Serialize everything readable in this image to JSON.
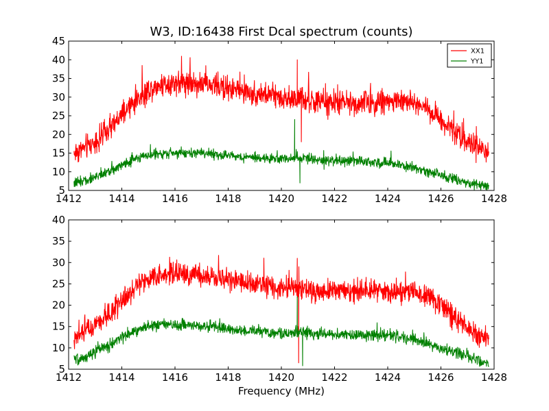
{
  "figure": {
    "title": "W3, ID:16438 First Dcal spectrum (counts)",
    "xlabel": "Frequency (MHz)"
  },
  "chart_data": [
    {
      "type": "line",
      "title": "W3, ID:16438 First Dcal spectrum (counts)",
      "xlabel": "",
      "ylabel": "",
      "xlim": [
        1412,
        1428
      ],
      "ylim": [
        5,
        45
      ],
      "xticks": [
        1412,
        1414,
        1416,
        1418,
        1420,
        1422,
        1424,
        1426,
        1428
      ],
      "yticks": [
        5,
        10,
        15,
        20,
        25,
        30,
        35,
        40,
        45
      ],
      "grid": false,
      "legend": "top-right",
      "x": [
        1412.2,
        1412.5,
        1413.0,
        1413.5,
        1414.0,
        1414.5,
        1415.0,
        1415.5,
        1416.0,
        1416.5,
        1417.0,
        1417.5,
        1418.0,
        1418.5,
        1419.0,
        1419.5,
        1420.0,
        1420.5,
        1421.0,
        1421.5,
        1422.0,
        1422.5,
        1423.0,
        1423.5,
        1424.0,
        1424.5,
        1425.0,
        1425.5,
        1426.0,
        1426.5,
        1427.0,
        1427.5,
        1427.8
      ],
      "series": [
        {
          "name": "XX1",
          "color": "#ff0000",
          "values": [
            15,
            16,
            18,
            21,
            25,
            29,
            32,
            33.5,
            34,
            34,
            33.5,
            33,
            32.5,
            31.5,
            31,
            30.5,
            30,
            29.5,
            29,
            28.5,
            28.5,
            28.5,
            28.5,
            28.5,
            29,
            29,
            28.5,
            27,
            24,
            21,
            18,
            16,
            15
          ],
          "noise": 3.2,
          "spikes": [
            {
              "x": 1420.6,
              "value": 40
            },
            {
              "x": 1420.75,
              "value": 18
            }
          ]
        },
        {
          "name": "YY1",
          "color": "#008000",
          "values": [
            7,
            7.5,
            8.5,
            10,
            12,
            13.5,
            14.5,
            15,
            15,
            15,
            15,
            14.5,
            14.5,
            14,
            14,
            13.5,
            13.5,
            13.5,
            13.5,
            13,
            13,
            13,
            13,
            12.5,
            12.5,
            12,
            11,
            10,
            9,
            8,
            7,
            6.5,
            6.5
          ],
          "noise": 1.3,
          "spikes": [
            {
              "x": 1420.5,
              "value": 24
            },
            {
              "x": 1420.7,
              "value": 7
            }
          ]
        }
      ]
    },
    {
      "type": "line",
      "title": "",
      "xlabel": "Frequency (MHz)",
      "ylabel": "",
      "xlim": [
        1412,
        1428
      ],
      "ylim": [
        5,
        40
      ],
      "xticks": [
        1412,
        1414,
        1416,
        1418,
        1420,
        1422,
        1424,
        1426,
        1428
      ],
      "yticks": [
        5,
        10,
        15,
        20,
        25,
        30,
        35,
        40
      ],
      "grid": false,
      "legend": "none",
      "x": [
        1412.2,
        1412.5,
        1413.0,
        1413.5,
        1414.0,
        1414.5,
        1415.0,
        1415.5,
        1416.0,
        1416.5,
        1417.0,
        1417.5,
        1418.0,
        1418.5,
        1419.0,
        1419.5,
        1420.0,
        1420.5,
        1421.0,
        1421.5,
        1422.0,
        1422.5,
        1423.0,
        1423.5,
        1424.0,
        1424.5,
        1425.0,
        1425.5,
        1426.0,
        1426.5,
        1427.0,
        1427.5,
        1427.8
      ],
      "series": [
        {
          "name": "XX1",
          "color": "#ff0000",
          "values": [
            12.5,
            13.5,
            15.5,
            18,
            21,
            24,
            26,
            27,
            27.5,
            27.5,
            27,
            26.5,
            26,
            25.5,
            25,
            24.5,
            24,
            24,
            23.5,
            23.5,
            23.5,
            23.5,
            23.5,
            23.5,
            23.5,
            23.5,
            23,
            22,
            20,
            17,
            14.5,
            13,
            12.5
          ],
          "noise": 2.6,
          "spikes": [
            {
              "x": 1420.6,
              "value": 31
            },
            {
              "x": 1420.65,
              "value": 6.5
            }
          ]
        },
        {
          "name": "YY1",
          "color": "#008000",
          "values": [
            7,
            7.5,
            9,
            10.5,
            12.5,
            14,
            15,
            15.5,
            15.5,
            15.5,
            15,
            15,
            14.5,
            14,
            14,
            13.5,
            13.5,
            13.5,
            13.5,
            13.5,
            13,
            13,
            13,
            13,
            13,
            12.5,
            12,
            11,
            10,
            9,
            8,
            7,
            6.5
          ],
          "noise": 1.3,
          "spikes": [
            {
              "x": 1420.6,
              "value": 22
            },
            {
              "x": 1420.8,
              "value": 5.8
            }
          ]
        }
      ]
    }
  ]
}
